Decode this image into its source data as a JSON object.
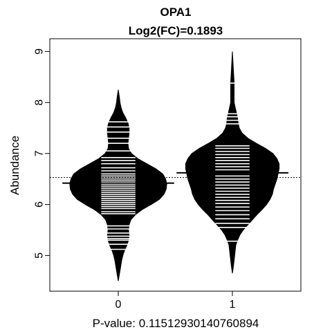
{
  "chart_data": {
    "type": "beanplot",
    "title": "OPA1",
    "subtitle": "Log2(FC)=0.1893",
    "xlabel": "P-value: 0.11512930140760894",
    "ylabel": "Abundance",
    "categories": [
      "0",
      "1"
    ],
    "y_ticks": [
      "5",
      "6",
      "7",
      "8",
      "9"
    ],
    "ylim": [
      4.3,
      9.25
    ],
    "grid": false,
    "legend": "none",
    "overall_mean": 6.53,
    "colors": {
      "bean": "#000000",
      "lines": "#ffffff",
      "axis": "#000000"
    },
    "groups": [
      {
        "name": "0",
        "mean": 6.42,
        "density": [
          [
            4.5,
            0.0
          ],
          [
            4.7,
            0.03
          ],
          [
            4.9,
            0.06
          ],
          [
            5.0,
            0.08
          ],
          [
            5.1,
            0.11
          ],
          [
            5.2,
            0.15
          ],
          [
            5.3,
            0.18
          ],
          [
            5.4,
            0.19
          ],
          [
            5.5,
            0.18
          ],
          [
            5.6,
            0.19
          ],
          [
            5.7,
            0.22
          ],
          [
            5.8,
            0.3
          ],
          [
            5.9,
            0.42
          ],
          [
            6.0,
            0.58
          ],
          [
            6.1,
            0.72
          ],
          [
            6.2,
            0.8
          ],
          [
            6.3,
            0.84
          ],
          [
            6.4,
            0.85
          ],
          [
            6.5,
            0.83
          ],
          [
            6.6,
            0.78
          ],
          [
            6.7,
            0.66
          ],
          [
            6.8,
            0.5
          ],
          [
            6.9,
            0.34
          ],
          [
            7.0,
            0.23
          ],
          [
            7.1,
            0.18
          ],
          [
            7.2,
            0.17
          ],
          [
            7.3,
            0.18
          ],
          [
            7.4,
            0.19
          ],
          [
            7.5,
            0.19
          ],
          [
            7.6,
            0.17
          ],
          [
            7.7,
            0.13
          ],
          [
            7.8,
            0.08
          ],
          [
            7.9,
            0.05
          ],
          [
            8.0,
            0.03
          ],
          [
            8.1,
            0.02
          ],
          [
            8.25,
            0.0
          ]
        ],
        "observations": [
          5.12,
          5.22,
          5.3,
          5.33,
          5.38,
          5.44,
          5.52,
          5.58,
          5.82,
          5.86,
          5.92,
          5.96,
          6.0,
          6.04,
          6.08,
          6.12,
          6.16,
          6.2,
          6.24,
          6.28,
          6.32,
          6.36,
          6.4,
          6.44,
          6.48,
          6.52,
          6.56,
          6.6,
          6.66,
          6.72,
          6.8,
          6.86,
          6.92,
          7.05,
          7.2,
          7.3,
          7.42,
          7.52,
          7.62
        ]
      },
      {
        "name": "1",
        "mean": 6.62,
        "density": [
          [
            4.65,
            0.0
          ],
          [
            4.8,
            0.02
          ],
          [
            5.0,
            0.04
          ],
          [
            5.2,
            0.06
          ],
          [
            5.3,
            0.09
          ],
          [
            5.4,
            0.13
          ],
          [
            5.5,
            0.19
          ],
          [
            5.6,
            0.27
          ],
          [
            5.7,
            0.35
          ],
          [
            5.8,
            0.43
          ],
          [
            5.9,
            0.52
          ],
          [
            6.0,
            0.6
          ],
          [
            6.1,
            0.66
          ],
          [
            6.2,
            0.7
          ],
          [
            6.3,
            0.72
          ],
          [
            6.4,
            0.75
          ],
          [
            6.5,
            0.78
          ],
          [
            6.6,
            0.8
          ],
          [
            6.7,
            0.82
          ],
          [
            6.8,
            0.82
          ],
          [
            6.9,
            0.78
          ],
          [
            7.0,
            0.71
          ],
          [
            7.1,
            0.58
          ],
          [
            7.2,
            0.42
          ],
          [
            7.3,
            0.27
          ],
          [
            7.4,
            0.17
          ],
          [
            7.5,
            0.12
          ],
          [
            7.6,
            0.1
          ],
          [
            7.7,
            0.09
          ],
          [
            7.8,
            0.07
          ],
          [
            7.9,
            0.05
          ],
          [
            8.0,
            0.03
          ],
          [
            8.2,
            0.03
          ],
          [
            8.4,
            0.03
          ],
          [
            8.6,
            0.02
          ],
          [
            8.8,
            0.01
          ],
          [
            9.0,
            0.0
          ]
        ],
        "observations": [
          5.28,
          5.55,
          5.63,
          5.72,
          5.8,
          5.88,
          5.95,
          6.02,
          6.08,
          6.14,
          6.2,
          6.26,
          6.32,
          6.38,
          6.44,
          6.5,
          6.56,
          6.62,
          6.68,
          6.74,
          6.8,
          6.86,
          6.92,
          6.98,
          7.04,
          7.1,
          7.15,
          7.58,
          7.65,
          7.72,
          7.78,
          8.38
        ]
      }
    ]
  }
}
